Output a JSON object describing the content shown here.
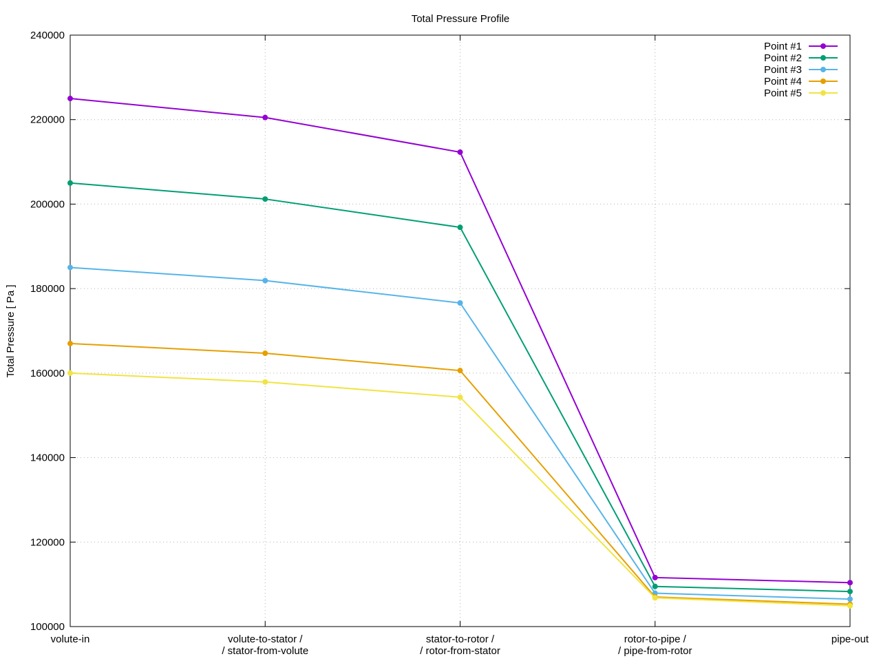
{
  "chart_data": {
    "type": "line",
    "title": "Total Pressure Profile",
    "xlabel": "",
    "ylabel": "Total Pressure [ Pa ]",
    "categories": [
      [
        "volute-in"
      ],
      [
        "volute-to-stator /",
        "/ stator-from-volute"
      ],
      [
        "stator-to-rotor /",
        "/ rotor-from-stator"
      ],
      [
        "rotor-to-pipe /",
        "/ pipe-from-rotor"
      ],
      [
        "pipe-out"
      ]
    ],
    "ylim": [
      100000,
      240000
    ],
    "yticks": [
      "100000",
      "120000",
      "140000",
      "160000",
      "180000",
      "200000",
      "220000",
      "240000"
    ],
    "grid": true,
    "legend_position": "top-right",
    "series": [
      {
        "name": "Point #1",
        "color": "#9400d3",
        "values": [
          225000,
          220500,
          212300,
          111600,
          110400
        ]
      },
      {
        "name": "Point #2",
        "color": "#009e73",
        "values": [
          205000,
          201200,
          194500,
          109500,
          108300
        ]
      },
      {
        "name": "Point #3",
        "color": "#56b4e9",
        "values": [
          185000,
          181900,
          176600,
          107900,
          106500
        ]
      },
      {
        "name": "Point #4",
        "color": "#e69f00",
        "values": [
          167000,
          164700,
          160600,
          107000,
          105300
        ]
      },
      {
        "name": "Point #5",
        "color": "#f0e442",
        "values": [
          160000,
          157900,
          154300,
          106800,
          104900
        ]
      }
    ]
  }
}
